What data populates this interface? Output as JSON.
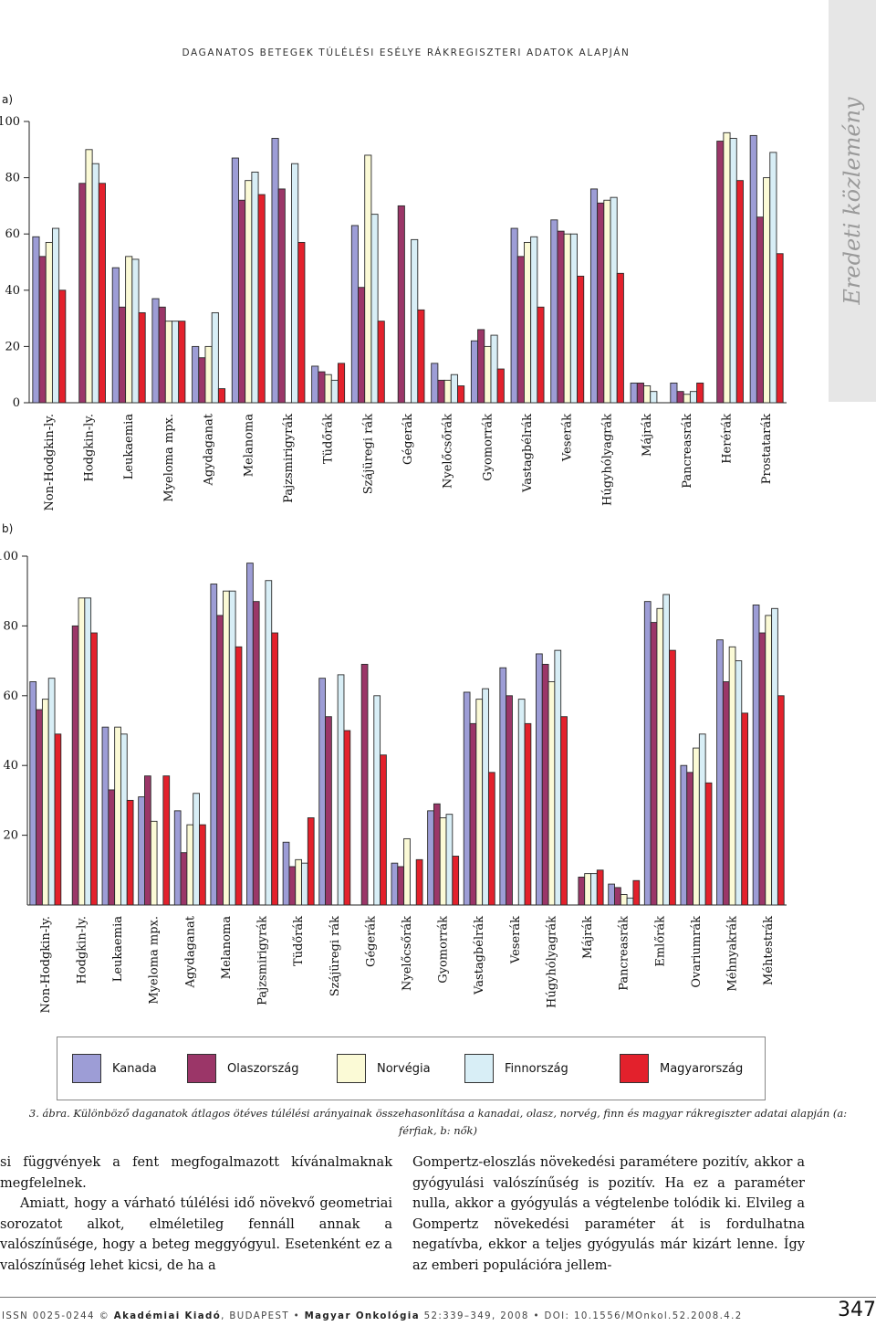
{
  "header": "DAGANATOS BETEGEK TÚLÉLÉSI ESÉLYE RÁKREGISZTERI ADATOK ALAPJÁN",
  "side_label": "Eredeti közlemény",
  "colors": {
    "Kanada": "#9d9dd6",
    "Olaszország": "#9b3668",
    "Norvégia": "#fbfad6",
    "Finnország": "#d8eef6",
    "Magyarország": "#e3212c"
  },
  "legend": {
    "items": [
      "Kanada",
      "Olaszország",
      "Norvégia",
      "Finnország",
      "Magyarország"
    ]
  },
  "chart_data": [
    {
      "type": "bar",
      "panel": "a)",
      "ylim": [
        0,
        100
      ],
      "yticks": [
        "0",
        "20",
        "40",
        "60",
        "80",
        "100"
      ],
      "grid": false,
      "categories": [
        "Non-Hodgkin-ly.",
        "Hodgkin-ly.",
        "Leukaemia",
        "Myeloma mpx.",
        "Agydaganat",
        "Melanoma",
        "Pajzsmirigyrák",
        "Tüdőrák",
        "Szájüregi rák",
        "Gégerák",
        "Nyelőcsőrák",
        "Gyomorrák",
        "Vastagbélrák",
        "Veserák",
        "Húgyhólyagrák",
        "Májrák",
        "Pancreasrák",
        "Herérák",
        "Prostatarák"
      ],
      "series": [
        {
          "name": "Kanada",
          "values": [
            59,
            null,
            48,
            37,
            20,
            87,
            94,
            13,
            63,
            null,
            14,
            22,
            62,
            65,
            76,
            7,
            7,
            null,
            95
          ]
        },
        {
          "name": "Olaszország",
          "values": [
            52,
            78,
            34,
            34,
            16,
            72,
            76,
            11,
            41,
            70,
            8,
            26,
            52,
            61,
            71,
            7,
            4,
            93,
            66
          ]
        },
        {
          "name": "Norvégia",
          "values": [
            57,
            90,
            52,
            29,
            20,
            79,
            null,
            10,
            88,
            null,
            8,
            20,
            57,
            60,
            72,
            6,
            3,
            96,
            80
          ]
        },
        {
          "name": "Finnország",
          "values": [
            62,
            85,
            51,
            29,
            32,
            82,
            85,
            8,
            67,
            58,
            10,
            24,
            59,
            60,
            73,
            4,
            4,
            94,
            89
          ]
        },
        {
          "name": "Magyarország",
          "values": [
            40,
            78,
            32,
            29,
            5,
            74,
            57,
            14,
            29,
            33,
            6,
            12,
            34,
            45,
            46,
            null,
            7,
            79,
            53
          ]
        }
      ]
    },
    {
      "type": "bar",
      "panel": "b)",
      "ylim": [
        0,
        100
      ],
      "yticks": [
        "20",
        "40",
        "60",
        "80",
        "100"
      ],
      "grid": false,
      "categories": [
        "Non-Hodgkin-ly.",
        "Hodgkin-ly.",
        "Leukaemia",
        "Myeloma mpx.",
        "Agydaganat",
        "Melanoma",
        "Pajzsmirigyrák",
        "Tüdőrák",
        "Szájüregi rák",
        "Gégerák",
        "Nyelőcsőrák",
        "Gyomorrák",
        "Vastagbélrák",
        "Veserák",
        "Húgyhólyagrák",
        "Májrák",
        "Pancreasrák",
        "Emlőrák",
        "Ovariumrák",
        "Méhnyakrák",
        "Méhtestrák"
      ],
      "series": [
        {
          "name": "Kanada",
          "values": [
            64,
            null,
            51,
            31,
            27,
            92,
            98,
            18,
            65,
            null,
            12,
            27,
            61,
            68,
            72,
            null,
            6,
            87,
            40,
            76,
            86
          ]
        },
        {
          "name": "Olaszország",
          "values": [
            56,
            80,
            33,
            37,
            15,
            83,
            87,
            11,
            54,
            69,
            11,
            29,
            52,
            60,
            69,
            8,
            5,
            81,
            38,
            64,
            78
          ]
        },
        {
          "name": "Norvégia",
          "values": [
            59,
            88,
            51,
            24,
            23,
            90,
            null,
            13,
            null,
            null,
            19,
            25,
            59,
            null,
            64,
            9,
            3,
            85,
            45,
            74,
            83
          ]
        },
        {
          "name": "Finnország",
          "values": [
            65,
            88,
            49,
            null,
            32,
            90,
            93,
            12,
            66,
            60,
            null,
            26,
            62,
            59,
            73,
            9,
            2,
            89,
            49,
            70,
            85
          ]
        },
        {
          "name": "Magyarország",
          "values": [
            49,
            78,
            30,
            37,
            23,
            74,
            78,
            25,
            50,
            43,
            13,
            14,
            38,
            52,
            54,
            10,
            7,
            73,
            35,
            55,
            60
          ]
        }
      ]
    }
  ],
  "caption": {
    "text": "3. ábra. Különböző daganatok átlagos ötéves túlélési arányainak összehasonlítása a kanadai, olasz, norvég, finn és magyar rákregiszter adatai alapján (a: férfiak, b: nők)"
  },
  "body": {
    "left_p1": "si függvények a fent megfogalmazott kívánalmaknak megfelelnek.",
    "left_p2": "Amiatt, hogy a várható túlélési idő növekvő geometriai sorozatot alkot, elméletileg fennáll annak a valószínűsége, hogy a beteg meggyógyul. Esetenként ez a valószínűség lehet kicsi, de ha a",
    "right_p1": "Gompertz-eloszlás növekedési paramétere pozitív, akkor a gyógyulási valószínűség is pozitív. Ha ez a paraméter nulla, akkor a gyógyulás a végtelenbe tolódik ki. Elvileg a Gompertz növekedési paraméter át is fordulhatna negatívba, ekkor a teljes gyógyulás már kizárt lenne. Így az emberi populációra jellem-"
  },
  "footer": {
    "issn": "ISSN 0025-0244 © ",
    "publisher": "Akadémiai Kiadó",
    "city": ", BUDAPEST • ",
    "journal": "Magyar Onkológia",
    "citation": " 52:339–349, 2008 • DOI: 10.1556/MOnkol.52.2008.4.2",
    "page": "347"
  }
}
